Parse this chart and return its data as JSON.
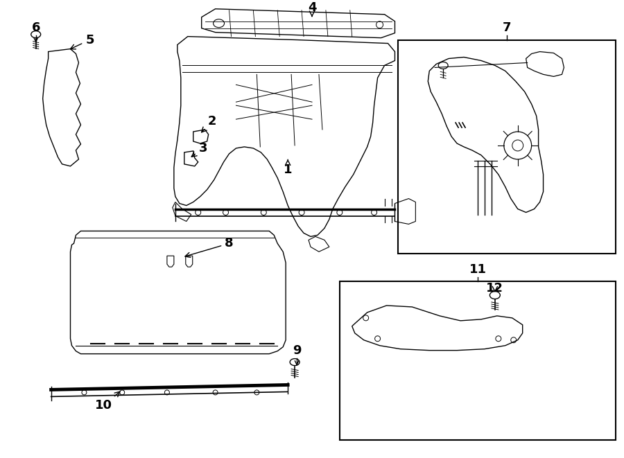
{
  "background_color": "#ffffff",
  "line_color": "#000000",
  "lw": 1.0
}
